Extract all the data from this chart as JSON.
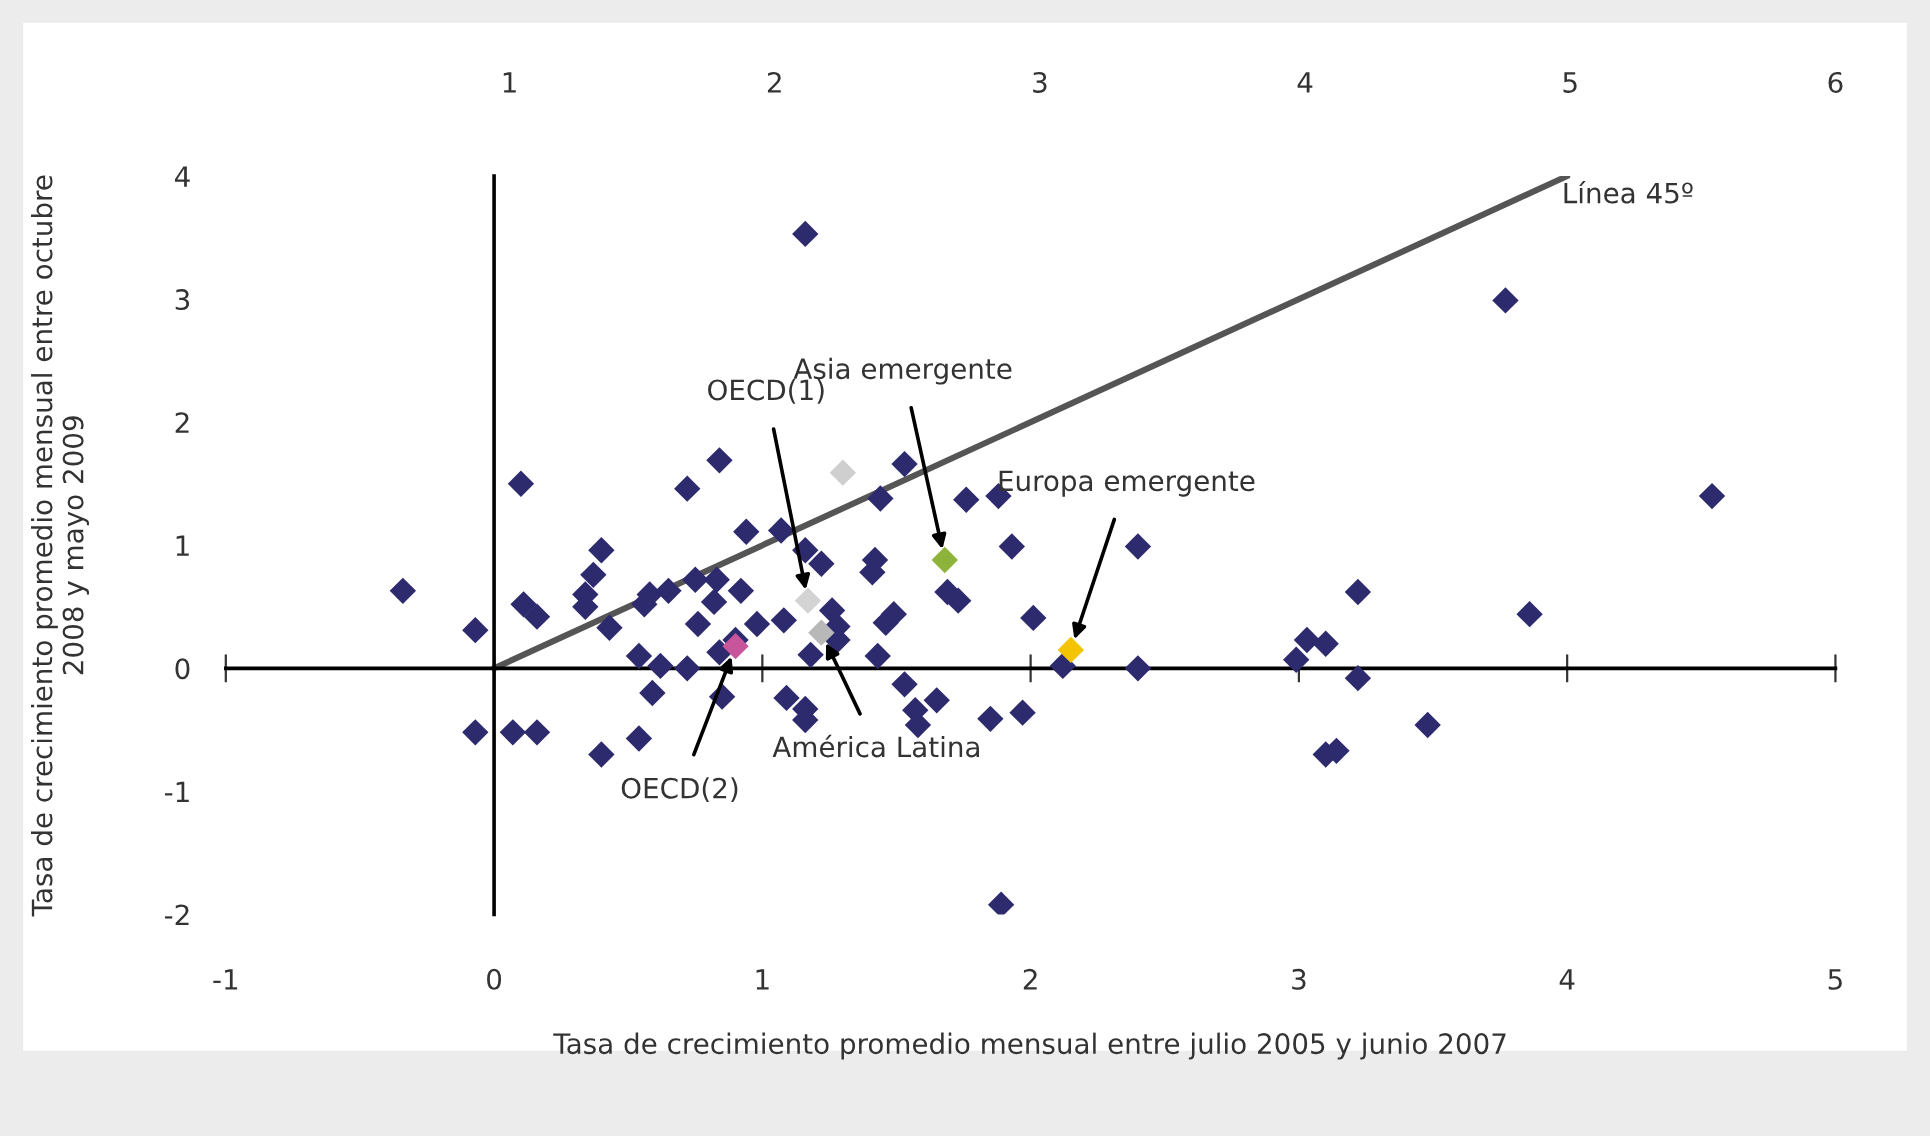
{
  "chart_data": {
    "type": "scatter",
    "xlabel": "Tasa de crecimiento promedio mensual entre julio 2005 y junio 2007",
    "ylabel": "Tasa de crecimiento promedio mensual entre octubre\n2008 y mayo 2009",
    "xlim": [
      -1,
      5
    ],
    "xticks": [
      -1,
      0,
      1,
      2,
      3,
      4,
      5
    ],
    "ylim": [
      -2,
      4
    ],
    "yticks": [
      -2,
      -1,
      0,
      1,
      2,
      3,
      4
    ],
    "x2lim": [
      -0.07,
      6
    ],
    "x2ticks": [
      1,
      2,
      3,
      4,
      5,
      6
    ],
    "marker": "diamond",
    "series": [
      {
        "color": "#2e2a6e",
        "x": [
          -0.34,
          -0.07,
          -0.07,
          0.1,
          0.11,
          0.16,
          0.16,
          0.07,
          0.34,
          0.34,
          0.37,
          0.4,
          0.43,
          0.4,
          0.54,
          0.54,
          0.56,
          0.58,
          0.59,
          0.62,
          0.65,
          0.72,
          0.72,
          0.75,
          0.76,
          0.82,
          0.83,
          0.84,
          0.84,
          0.85,
          0.9,
          0.92,
          0.94,
          0.98,
          1.07,
          1.08,
          1.09,
          1.16,
          1.16,
          1.16,
          1.16,
          1.18,
          1.22,
          1.26,
          1.28,
          1.28,
          1.41,
          1.42,
          1.43,
          1.44,
          1.46,
          1.49,
          1.53,
          1.53,
          1.57,
          1.58,
          1.65,
          1.69,
          1.73,
          1.76,
          1.85,
          1.88,
          1.89,
          1.93,
          1.97,
          2.01,
          2.12,
          2.4,
          2.4,
          2.99,
          3.03,
          3.22,
          3.1,
          3.1,
          3.14,
          3.22,
          3.48,
          3.77,
          3.86,
          4.54
        ],
        "values": [
          0.63,
          0.31,
          -0.52,
          1.5,
          0.52,
          0.42,
          -0.52,
          -0.52,
          0.6,
          0.5,
          0.76,
          0.96,
          0.33,
          -0.7,
          -0.57,
          0.1,
          0.52,
          0.6,
          -0.2,
          0.02,
          0.63,
          0.0,
          1.46,
          0.72,
          0.36,
          0.54,
          0.72,
          1.69,
          0.13,
          -0.23,
          0.23,
          0.63,
          1.11,
          0.36,
          1.12,
          0.39,
          -0.24,
          3.53,
          0.96,
          -0.33,
          -0.42,
          0.11,
          0.85,
          0.47,
          0.23,
          0.34,
          0.78,
          0.88,
          0.1,
          1.38,
          0.37,
          0.44,
          1.66,
          -0.13,
          -0.34,
          -0.46,
          -0.26,
          0.62,
          0.55,
          1.37,
          -0.41,
          1.4,
          -1.92,
          0.99,
          -0.36,
          0.41,
          0.02,
          0.99,
          0.0,
          0.07,
          0.23,
          0.62,
          0.2,
          -0.7,
          -0.67,
          -0.08,
          -0.46,
          2.99,
          0.44,
          1.4
        ]
      },
      {
        "color": "#c8559c",
        "x": [
          0.9
        ],
        "values": [
          0.18
        ]
      },
      {
        "color": "#d3d3d3",
        "x": [
          1.17
        ],
        "values": [
          0.55
        ]
      },
      {
        "color": "#b8b8b8",
        "x": [
          1.22
        ],
        "values": [
          0.29
        ]
      },
      {
        "color": "#cfcfcf",
        "x": [
          1.3
        ],
        "values": [
          1.59
        ]
      },
      {
        "color": "#8db33a",
        "x": [
          1.68
        ],
        "values": [
          0.88
        ]
      },
      {
        "color": "#f5c400",
        "x": [
          2.15
        ],
        "values": [
          0.15
        ]
      },
      {
        "type": "line",
        "color": "#555555",
        "marker": "none",
        "x": [
          0,
          4
        ],
        "values": [
          0,
          4
        ]
      }
    ],
    "annotations": [
      {
        "text": "OECD(1)",
        "x": 1.17,
        "y": 0.55
      },
      {
        "text": "Asia emergente",
        "x": 1.68,
        "y": 0.88
      },
      {
        "text": "Europa emergente",
        "x": 2.15,
        "y": 0.15
      },
      {
        "text": "OECD(2)",
        "x": 0.9,
        "y": 0.18
      },
      {
        "text": "América Latina",
        "x": 1.22,
        "y": 0.29
      },
      {
        "text": "Línea 45º",
        "x": 4.0,
        "y": 4.0
      }
    ]
  }
}
